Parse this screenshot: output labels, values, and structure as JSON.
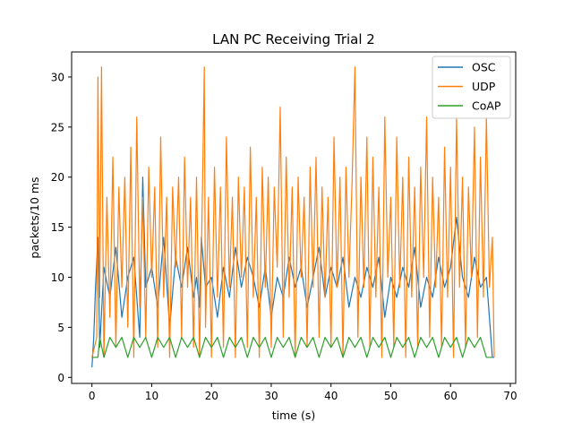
{
  "chart_data": {
    "type": "line",
    "title": "LAN PC Receiving Trial 2",
    "xlabel": "time (s)",
    "ylabel": "packets/10 ms",
    "xlim": [
      -3.4,
      70.9
    ],
    "ylim": [
      -0.6,
      32.5
    ],
    "xticks": [
      0,
      10,
      20,
      30,
      40,
      50,
      60,
      70
    ],
    "yticks": [
      0,
      5,
      10,
      15,
      20,
      25,
      30
    ],
    "grid": false,
    "legend_position": "top-right",
    "series": [
      {
        "name": "OSC",
        "color": "#1f77b4",
        "x": [
          0,
          0.3,
          0.6,
          1.0,
          1.3,
          2.0,
          3.0,
          4.0,
          5.0,
          6.0,
          7.0,
          8.0,
          8.5,
          9.0,
          10.0,
          11.0,
          12.0,
          13.0,
          14.0,
          15.0,
          16.0,
          17.0,
          17.5,
          18.0,
          18.3,
          19.0,
          20.0,
          21.0,
          22.0,
          23.0,
          24.0,
          25.0,
          26.0,
          27.0,
          28.0,
          29.0,
          30.0,
          31.0,
          32.0,
          33.0,
          34.0,
          35.0,
          36.0,
          37.0,
          38.0,
          39.0,
          40.0,
          41.0,
          42.0,
          43.0,
          44.0,
          45.0,
          46.0,
          47.0,
          48.0,
          49.0,
          50.0,
          51.0,
          52.0,
          53.0,
          54.0,
          55.0,
          56.0,
          57.0,
          58.0,
          59.0,
          60.0,
          61.0,
          62.0,
          63.0,
          64.0,
          65.0,
          66.0,
          67.0,
          67.3
        ],
        "y": [
          1,
          4,
          9,
          14,
          3,
          11,
          8,
          13,
          6,
          10,
          12,
          4,
          20,
          9,
          11,
          7,
          14,
          5,
          12,
          9,
          13,
          8,
          10,
          7,
          14,
          9,
          10,
          6,
          11,
          8,
          13,
          9,
          12,
          10,
          7,
          11,
          6,
          10,
          8,
          12,
          9,
          11,
          7,
          10,
          13,
          8,
          11,
          9,
          12,
          7,
          10,
          8,
          11,
          9,
          12,
          6,
          10,
          8,
          11,
          9,
          13,
          7,
          10,
          8,
          12,
          9,
          11,
          16,
          10,
          8,
          12,
          9,
          10,
          2,
          2
        ]
      },
      {
        "name": "UDP",
        "color": "#ff7f0e",
        "x": [
          0,
          0.8,
          1.0,
          1.3,
          1.6,
          2.0,
          2.5,
          3.0,
          3.5,
          4.0,
          4.5,
          5.0,
          5.5,
          6.0,
          6.5,
          7.0,
          7.5,
          8.0,
          8.5,
          9.0,
          9.5,
          10.0,
          10.5,
          11.0,
          11.5,
          12.0,
          12.5,
          13.0,
          13.5,
          14.0,
          14.5,
          15.0,
          15.5,
          16.0,
          16.5,
          17.0,
          17.5,
          18.0,
          18.5,
          18.8,
          19.0,
          19.5,
          20.0,
          20.5,
          21.0,
          21.5,
          22.0,
          22.5,
          23.0,
          23.5,
          24.0,
          24.5,
          25.0,
          25.5,
          26.0,
          26.5,
          27.0,
          27.5,
          28.0,
          28.5,
          29.0,
          29.5,
          30.0,
          30.5,
          31.0,
          31.5,
          32.0,
          32.5,
          33.0,
          33.5,
          34.0,
          34.5,
          35.0,
          35.5,
          36.0,
          36.5,
          37.0,
          37.5,
          38.0,
          38.5,
          39.0,
          39.5,
          40.0,
          40.5,
          41.0,
          41.5,
          42.0,
          42.5,
          43.0,
          43.5,
          44.0,
          44.5,
          45.0,
          45.5,
          46.0,
          46.5,
          47.0,
          47.5,
          48.0,
          48.5,
          49.0,
          49.5,
          50.0,
          50.5,
          51.0,
          51.5,
          52.0,
          52.5,
          53.0,
          53.5,
          54.0,
          54.5,
          55.0,
          55.5,
          56.0,
          56.5,
          57.0,
          57.5,
          58.0,
          58.5,
          59.0,
          59.5,
          60.0,
          60.5,
          61.0,
          61.5,
          62.0,
          62.5,
          63.0,
          63.5,
          64.0,
          64.5,
          65.0,
          65.5,
          66.0,
          66.5,
          67.0,
          67.3
        ],
        "y": [
          2,
          4,
          30,
          8,
          31,
          2,
          18,
          6,
          22,
          3,
          19,
          9,
          20,
          5,
          23,
          2,
          26,
          7,
          18,
          4,
          21,
          10,
          19,
          3,
          24,
          8,
          18,
          2,
          19,
          11,
          20,
          4,
          22,
          9,
          18,
          3,
          20,
          2,
          19,
          31,
          5,
          18,
          2,
          21,
          8,
          19,
          3,
          24,
          9,
          18,
          2,
          20,
          10,
          19,
          3,
          23,
          8,
          18,
          2,
          21,
          9,
          20,
          3,
          19,
          11,
          27,
          4,
          22,
          8,
          19,
          2,
          20,
          10,
          18,
          3,
          21,
          9,
          22,
          4,
          19,
          8,
          18,
          3,
          24,
          9,
          20,
          2,
          21,
          10,
          19,
          31,
          4,
          20,
          9,
          24,
          3,
          22,
          8,
          19,
          2,
          26,
          10,
          18,
          3,
          24,
          9,
          20,
          2,
          22,
          8,
          19,
          3,
          21,
          10,
          26,
          4,
          20,
          9,
          18,
          3,
          23,
          8,
          21,
          2,
          26,
          9,
          20,
          3,
          19,
          10,
          25,
          4,
          22,
          8,
          26,
          9,
          14,
          2
        ],
        "steps_note": ""
      },
      {
        "name": "CoAP",
        "color": "#2ca02c",
        "x": [
          0,
          1.0,
          1.3,
          2.0,
          3.0,
          4.0,
          5.0,
          6.0,
          7.0,
          8.0,
          9.0,
          10.0,
          11.0,
          12.0,
          13.0,
          14.0,
          15.0,
          16.0,
          17.0,
          18.0,
          19.0,
          20.0,
          21.0,
          22.0,
          23.0,
          24.0,
          25.0,
          26.0,
          27.0,
          28.0,
          29.0,
          30.0,
          31.0,
          32.0,
          33.0,
          34.0,
          35.0,
          36.0,
          37.0,
          38.0,
          39.0,
          40.0,
          41.0,
          42.0,
          43.0,
          44.0,
          45.0,
          46.0,
          47.0,
          48.0,
          49.0,
          50.0,
          51.0,
          52.0,
          53.0,
          54.0,
          55.0,
          56.0,
          57.0,
          58.0,
          59.0,
          60.0,
          61.0,
          62.0,
          63.0,
          64.0,
          65.0,
          66.0,
          67.0
        ],
        "y": [
          2,
          2,
          4,
          2,
          4,
          3,
          4,
          2,
          4,
          3,
          4,
          2,
          4,
          3,
          4,
          2,
          4,
          3,
          4,
          2,
          4,
          3,
          4,
          2,
          4,
          3,
          4,
          2,
          4,
          3,
          4,
          2,
          4,
          3,
          4,
          2,
          4,
          3,
          4,
          2,
          4,
          3,
          4,
          2,
          4,
          3,
          4,
          2,
          4,
          3,
          4,
          2,
          4,
          3,
          4,
          2,
          4,
          3,
          4,
          2,
          4,
          3,
          4,
          2,
          4,
          3,
          4,
          2,
          2
        ]
      }
    ]
  }
}
